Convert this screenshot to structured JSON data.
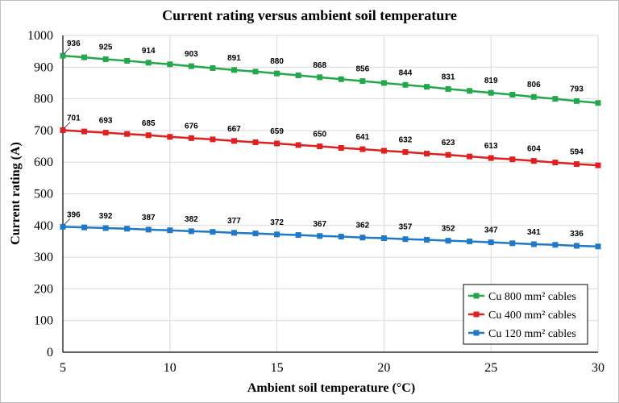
{
  "chart_data": {
    "type": "line",
    "title": "Current rating versus ambient soil temperature",
    "xlabel": "Ambient soil temperature (°C)",
    "ylabel": "Current rating (A)",
    "xlim": [
      5,
      30
    ],
    "ylim": [
      0,
      1000
    ],
    "x_ticks": [
      5,
      10,
      15,
      20,
      25,
      30
    ],
    "y_ticks": [
      0,
      100,
      200,
      300,
      400,
      500,
      600,
      700,
      800,
      900,
      1000
    ],
    "grid": "major",
    "legend_position": "bottom-right",
    "x": [
      5,
      6,
      7,
      8,
      9,
      10,
      11,
      12,
      13,
      14,
      15,
      16,
      17,
      18,
      19,
      20,
      21,
      22,
      23,
      24,
      25,
      26,
      27,
      28,
      29,
      30
    ],
    "series": [
      {
        "name": "Cu 800 mm² cables",
        "color": "#22a84a",
        "values": [
          936,
          931,
          925,
          920,
          914,
          909,
          903,
          897,
          891,
          886,
          880,
          874,
          868,
          862,
          856,
          850,
          844,
          838,
          831,
          825,
          819,
          813,
          806,
          800,
          793,
          787
        ],
        "labels": [
          "936",
          "925",
          "914",
          "903",
          "891",
          "880",
          "868",
          "856",
          "844",
          "831",
          "819",
          "806",
          "793"
        ]
      },
      {
        "name": "Cu 400 mm² cables",
        "color": "#e01f1f",
        "values": [
          701,
          697,
          693,
          689,
          685,
          680,
          676,
          672,
          667,
          663,
          659,
          654,
          650,
          645,
          641,
          636,
          632,
          627,
          623,
          618,
          613,
          609,
          604,
          599,
          594,
          590
        ],
        "labels": [
          "701",
          "693",
          "685",
          "676",
          "667",
          "659",
          "650",
          "641",
          "632",
          "623",
          "613",
          "604",
          "594"
        ]
      },
      {
        "name": "Cu 120 mm² cables",
        "color": "#1f78c8",
        "values": [
          396,
          394,
          392,
          390,
          387,
          385,
          382,
          380,
          377,
          375,
          372,
          370,
          367,
          365,
          362,
          360,
          357,
          355,
          352,
          350,
          347,
          344,
          341,
          339,
          336,
          334
        ],
        "labels": [
          "396",
          "392",
          "387",
          "382",
          "377",
          "372",
          "367",
          "362",
          "357",
          "352",
          "347",
          "341",
          "336"
        ]
      }
    ]
  }
}
